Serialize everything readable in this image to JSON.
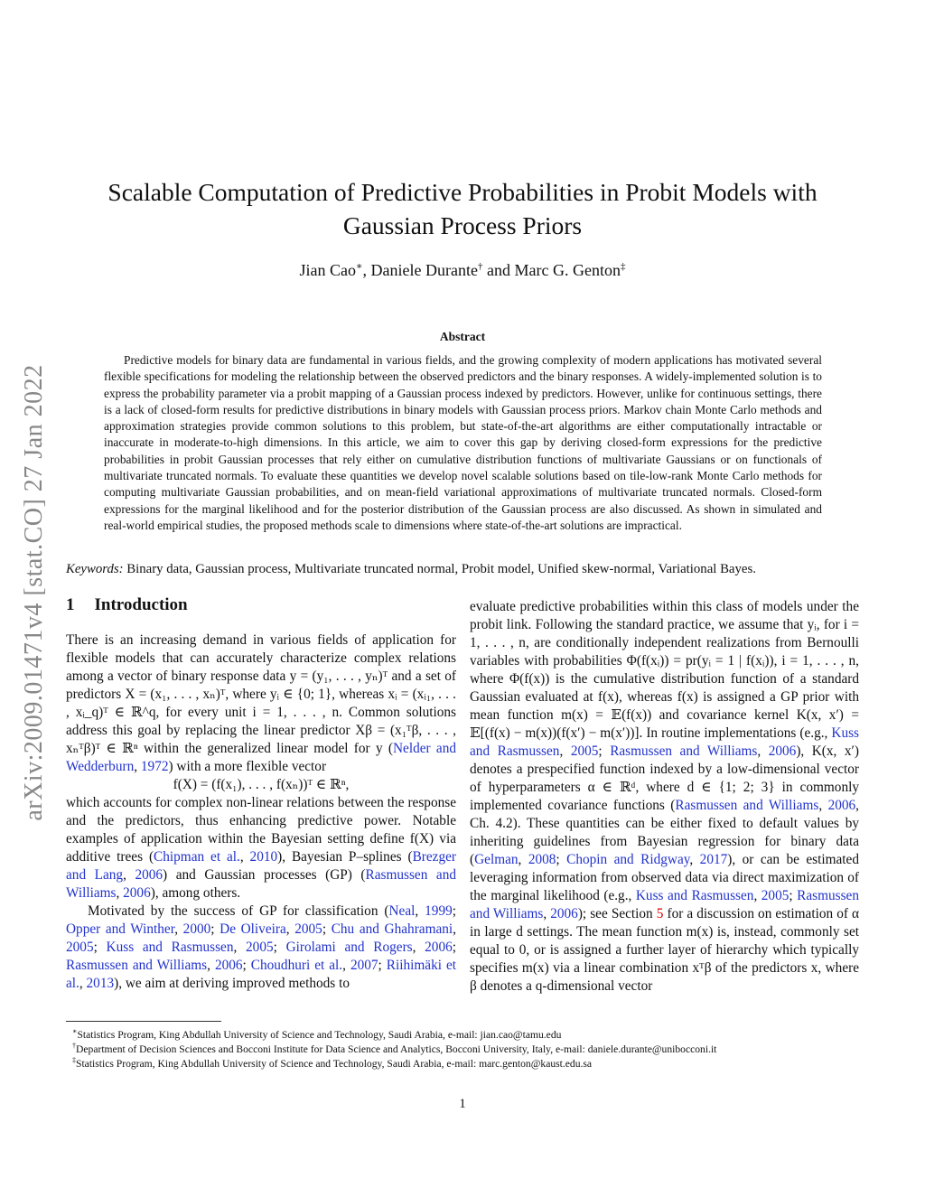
{
  "stamp": "arXiv:2009.01471v4  [stat.CO]  27 Jan 2022",
  "title_line1": "Scalable Computation of Predictive Probabilities in Probit Models with",
  "title_line2": "Gaussian Process Priors",
  "authors": [
    {
      "name": "Jian Cao",
      "mark": "∗",
      "sep": ", "
    },
    {
      "name": "Daniele Durante",
      "mark": "†",
      "sep": " and "
    },
    {
      "name": "Marc G. Genton",
      "mark": "‡",
      "sep": ""
    }
  ],
  "abstract_heading": "Abstract",
  "abstract": "Predictive models for binary data are fundamental in various fields, and the growing complexity of modern applications has motivated several flexible specifications for modeling the relationship between the observed predictors and the binary responses. A widely-implemented solution is to express the probability parameter via a probit mapping of a Gaussian process indexed by predictors. However, unlike for continuous settings, there is a lack of closed-form results for predictive distributions in binary models with Gaussian process priors. Markov chain Monte Carlo methods and approximation strategies provide common solutions to this problem, but state-of-the-art algorithms are either computationally intractable or inaccurate in moderate-to-high dimensions. In this article, we aim to cover this gap by deriving closed-form expressions for the predictive probabilities in probit Gaussian processes that rely either on cumulative distribution functions of multivariate Gaussians or on functionals of multivariate truncated normals. To evaluate these quantities we develop novel scalable solutions based on tile-low-rank Monte Carlo methods for computing multivariate Gaussian probabilities, and on mean-field variational approximations of multivariate truncated normals. Closed-form expressions for the marginal likelihood and for the posterior distribution of the Gaussian process are also discussed. As shown in simulated and real-world empirical studies, the proposed methods scale to dimensions where state-of-the-art solutions are impractical.",
  "keywords_label": "Keywords:",
  "keywords": "Binary data, Gaussian process, Multivariate truncated normal, Probit model, Unified skew-normal, Variational Bayes.",
  "section": {
    "number": "1",
    "title": "Introduction"
  },
  "left": [
    {
      "indent": false,
      "segments": [
        [
          "t",
          "There is an increasing demand in various fields of application for flexible models that can accurately characterize complex relations among a vector of binary response data y = (y₁, . . . , yₙ)ᵀ and a set of predictors X = (x₁, . . . , xₙ)ᵀ, where yᵢ ∈ {0; 1}, whereas xᵢ = (xᵢ₁, . . . , xᵢ_q)ᵀ ∈ ℝ^q, for every unit i = 1, . . . , n. Common solutions address this goal by replacing the linear predictor Xβ = (x₁ᵀβ, . . . , xₙᵀβ)ᵀ ∈ ℝⁿ within the generalized linear model for y ("
        ],
        [
          "l",
          "Nelder and Wedderburn"
        ],
        [
          "t",
          ", "
        ],
        [
          "l",
          "1972"
        ],
        [
          "t",
          ") with a more flexible vector"
        ]
      ]
    },
    {
      "equation": "f(X) = (f(x₁), . . . , f(xₙ))ᵀ ∈ ℝⁿ,"
    },
    {
      "indent": false,
      "segments": [
        [
          "t",
          "which accounts for complex non-linear relations between the response and the predictors, thus enhancing predictive power. Notable examples of application within the Bayesian setting define f(X) via additive trees ("
        ],
        [
          "l",
          "Chipman et al."
        ],
        [
          "t",
          ", "
        ],
        [
          "l",
          "2010"
        ],
        [
          "t",
          "), Bayesian P–splines ("
        ],
        [
          "l",
          "Brezger and Lang"
        ],
        [
          "t",
          ", "
        ],
        [
          "l",
          "2006"
        ],
        [
          "t",
          ") and Gaussian processes (GP) ("
        ],
        [
          "l",
          "Rasmussen and Williams"
        ],
        [
          "t",
          ", "
        ],
        [
          "l",
          "2006"
        ],
        [
          "t",
          "), among others."
        ]
      ]
    },
    {
      "indent": true,
      "segments": [
        [
          "t",
          "Motivated by the success of GP for classification ("
        ],
        [
          "l",
          "Neal"
        ],
        [
          "t",
          ", "
        ],
        [
          "l",
          "1999"
        ],
        [
          "t",
          "; "
        ],
        [
          "l",
          "Opper and Winther"
        ],
        [
          "t",
          ", "
        ],
        [
          "l",
          "2000"
        ],
        [
          "t",
          "; "
        ],
        [
          "l",
          "De Oliveira"
        ],
        [
          "t",
          ", "
        ],
        [
          "l",
          "2005"
        ],
        [
          "t",
          "; "
        ],
        [
          "l",
          "Chu and Ghahramani"
        ],
        [
          "t",
          ", "
        ],
        [
          "l",
          "2005"
        ],
        [
          "t",
          "; "
        ],
        [
          "l",
          "Kuss and Rasmussen"
        ],
        [
          "t",
          ", "
        ],
        [
          "l",
          "2005"
        ],
        [
          "t",
          "; "
        ],
        [
          "l",
          "Girolami and Rogers"
        ],
        [
          "t",
          ", "
        ],
        [
          "l",
          "2006"
        ],
        [
          "t",
          "; "
        ],
        [
          "l",
          "Rasmussen and Williams"
        ],
        [
          "t",
          ", "
        ],
        [
          "l",
          "2006"
        ],
        [
          "t",
          "; "
        ],
        [
          "l",
          "Choudhuri et al."
        ],
        [
          "t",
          ", "
        ],
        [
          "l",
          "2007"
        ],
        [
          "t",
          "; "
        ],
        [
          "l",
          "Riihimäki et al."
        ],
        [
          "t",
          ", "
        ],
        [
          "l",
          "2013"
        ],
        [
          "t",
          "), we aim at deriving improved methods to"
        ]
      ]
    }
  ],
  "right": [
    {
      "indent": false,
      "segments": [
        [
          "t",
          "evaluate predictive probabilities within this class of models under the probit link. Following the standard practice, we assume that yᵢ, for i = 1, . . . , n, are conditionally independent realizations from Bernoulli variables with probabilities Φ(f(xᵢ)) = pr(yᵢ = 1 | f(xᵢ)), i = 1, . . . , n, where Φ(f(x)) is the cumulative distribution function of a standard Gaussian evaluated at f(x), whereas f(x) is assigned a GP prior with mean function m(x) = 𝔼(f(x)) and covariance kernel K(x, x′) = 𝔼[(f(x) − m(x))(f(x′) − m(x′))]. In routine implementations (e.g., "
        ],
        [
          "l",
          "Kuss and Rasmussen"
        ],
        [
          "t",
          ", "
        ],
        [
          "l",
          "2005"
        ],
        [
          "t",
          "; "
        ],
        [
          "l",
          "Rasmussen and Williams"
        ],
        [
          "t",
          ", "
        ],
        [
          "l",
          "2006"
        ],
        [
          "t",
          "), K(x, x′) denotes a prespecified function indexed by a low-dimensional vector of hyperparameters α ∈ ℝᵈ, where d ∈ {1; 2; 3} in commonly implemented covariance functions ("
        ],
        [
          "l",
          "Rasmussen and Williams"
        ],
        [
          "t",
          ", "
        ],
        [
          "l",
          "2006"
        ],
        [
          "t",
          ", Ch. 4.2). These quantities can be either fixed to default values by inheriting guidelines from Bayesian regression for binary data ("
        ],
        [
          "l",
          "Gelman"
        ],
        [
          "t",
          ", "
        ],
        [
          "l",
          "2008"
        ],
        [
          "t",
          "; "
        ],
        [
          "l",
          "Chopin and Ridgway"
        ],
        [
          "t",
          ", "
        ],
        [
          "l",
          "2017"
        ],
        [
          "t",
          "), or can be estimated leveraging information from observed data via direct maximization of the marginal likelihood (e.g., "
        ],
        [
          "l",
          "Kuss and Rasmussen"
        ],
        [
          "t",
          ", "
        ],
        [
          "l",
          "2005"
        ],
        [
          "t",
          "; "
        ],
        [
          "l",
          "Rasmussen and Williams"
        ],
        [
          "t",
          ", "
        ],
        [
          "l",
          "2006"
        ],
        [
          "t",
          "); see Section "
        ],
        [
          "r",
          "5"
        ],
        [
          "t",
          " for a discussion on estimation of α in large d settings. The mean function m(x) is, instead, commonly set equal to 0, or is assigned a further layer of hierarchy which typically specifies m(x) via a linear combination xᵀβ of the predictors x, where β denotes a q-dimensional vector"
        ]
      ]
    }
  ],
  "footnotes": [
    {
      "mark": "∗",
      "text": "Statistics Program, King Abdullah University of Science and Technology, Saudi Arabia, e-mail: jian.cao@tamu.edu"
    },
    {
      "mark": "†",
      "text": "Department of Decision Sciences and Bocconi Institute for Data Science and Analytics, Bocconi University, Italy, e-mail: daniele.durante@unibocconi.it"
    },
    {
      "mark": "‡",
      "text": "Statistics Program, King Abdullah University of Science and Technology, Saudi Arabia, e-mail: marc.genton@kaust.edu.sa"
    }
  ],
  "page_number": "1",
  "colors": {
    "link": "#2233cc",
    "section_ref": "#dd0000",
    "stamp": "#888888"
  }
}
